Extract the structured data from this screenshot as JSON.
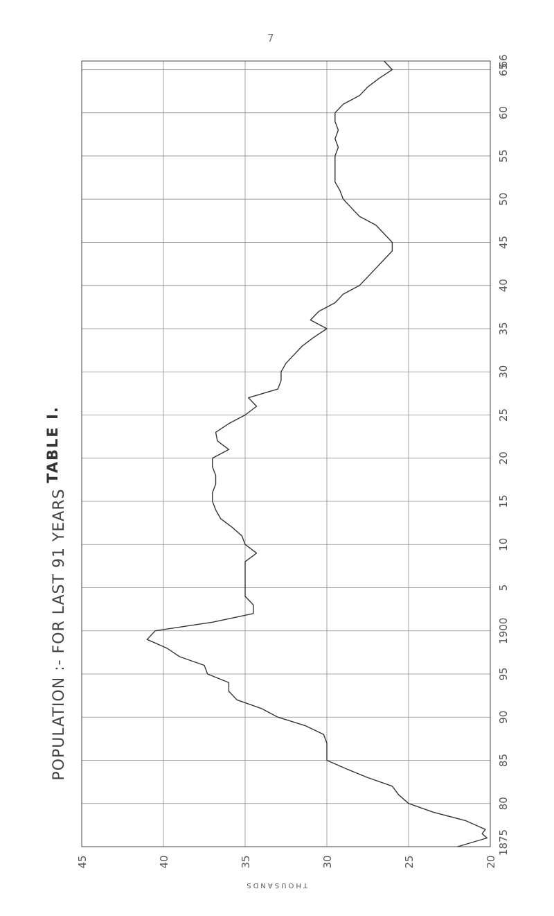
{
  "page_number": "7",
  "table_title": "TABLE I.",
  "chart_data": {
    "type": "line",
    "title": "POPULATION :- FOR LAST 91 YEARS",
    "xlabel": "",
    "ylabel": "THOUSANDS",
    "grid": true,
    "xlim": [
      1875,
      1966
    ],
    "ylim": [
      20,
      45
    ],
    "x_ticks": [
      1875,
      1880,
      1885,
      1890,
      1895,
      1900,
      1905,
      1910,
      1915,
      1920,
      1925,
      1930,
      1935,
      1940,
      1945,
      1950,
      1955,
      1960,
      1965,
      1966
    ],
    "x_tick_labels": [
      "1875",
      "80",
      "85",
      "90",
      "95",
      "1900",
      "5",
      "10",
      "15",
      "20",
      "25",
      "30",
      "35",
      "40",
      "45",
      "50",
      "55",
      "60",
      "65",
      "66"
    ],
    "y_ticks": [
      45,
      40,
      35,
      30,
      25,
      20
    ],
    "y_tick_labels": [
      "45",
      "40",
      "35",
      "30",
      "25",
      "20"
    ],
    "series": [
      {
        "x": [
          1875,
          1876,
          1876.5,
          1877,
          1878,
          1879,
          1880,
          1881,
          1882,
          1883,
          1884,
          1885,
          1886,
          1887,
          1888,
          1889,
          1890,
          1891,
          1892,
          1893,
          1894,
          1895,
          1896,
          1897,
          1898,
          1899,
          1900,
          1901,
          1902,
          1903,
          1904,
          1905,
          1906,
          1907,
          1908,
          1909,
          1910,
          1911,
          1912,
          1913,
          1914,
          1915,
          1916,
          1917,
          1918,
          1919,
          1920,
          1921,
          1922,
          1923,
          1924,
          1925,
          1926,
          1927,
          1928,
          1929,
          1930,
          1931,
          1932,
          1933,
          1934,
          1935,
          1936,
          1937,
          1938,
          1939,
          1940,
          1941,
          1942,
          1943,
          1944,
          1945,
          1946,
          1947,
          1948,
          1949,
          1950,
          1951,
          1952,
          1953,
          1954,
          1955,
          1956,
          1957,
          1958,
          1959,
          1960,
          1961,
          1962,
          1963,
          1964,
          1965,
          1966
        ],
        "y": [
          22.0,
          20.2,
          20.5,
          20.3,
          21.5,
          23.5,
          25.0,
          25.6,
          26.0,
          27.5,
          28.8,
          30.0,
          30.0,
          30.0,
          30.2,
          31.3,
          33.0,
          34.0,
          35.5,
          36.0,
          36.0,
          37.3,
          37.5,
          39.0,
          39.8,
          41.0,
          40.5,
          37.0,
          34.5,
          34.5,
          35.0,
          35.0,
          35.0,
          35.0,
          35.0,
          34.3,
          35.0,
          35.2,
          35.8,
          36.5,
          36.8,
          37.0,
          37.0,
          36.8,
          36.8,
          37.0,
          37.0,
          36.0,
          36.7,
          36.8,
          36.0,
          35.0,
          34.3,
          34.8,
          33.0,
          32.8,
          32.8,
          32.5,
          32.0,
          31.5,
          30.8,
          30.0,
          31.0,
          30.5,
          29.5,
          29.0,
          28.0,
          27.5,
          27.0,
          26.5,
          26.0,
          26.0,
          26.5,
          27.0,
          28.0,
          28.5,
          29.0,
          29.2,
          29.5,
          29.5,
          29.5,
          29.5,
          29.3,
          29.5,
          29.3,
          29.5,
          29.5,
          29.0,
          28.0,
          27.5,
          26.8,
          26.0,
          26.5
        ],
        "color": "#333333"
      }
    ]
  }
}
